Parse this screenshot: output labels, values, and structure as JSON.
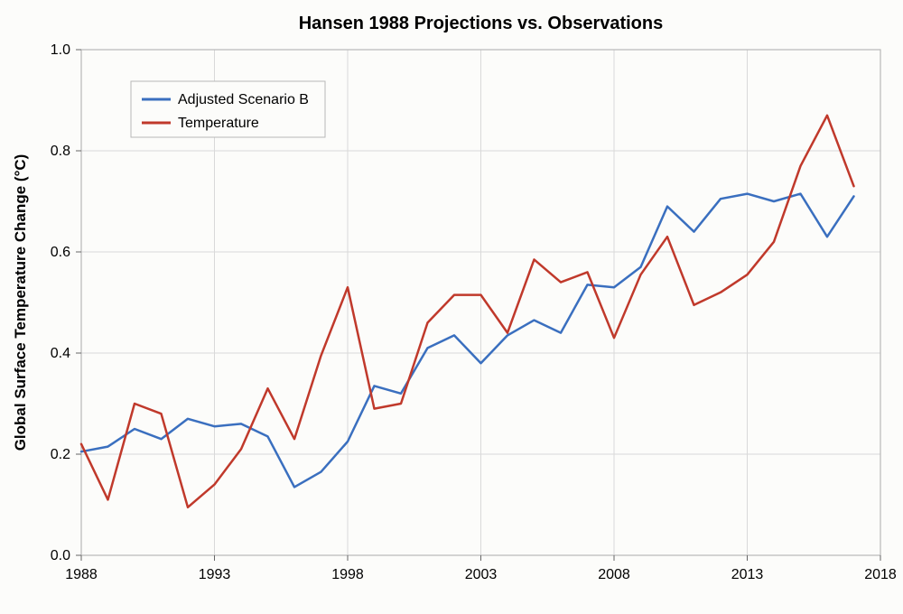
{
  "chart": {
    "type": "line",
    "title": "Hansen 1988 Projections vs. Observations",
    "title_fontsize": 20,
    "title_fontweight": "700",
    "background_color": "#fcfcfa",
    "plot_border_color": "#b8b8b8",
    "grid_color": "#d9d9d9",
    "grid_on": true,
    "x": {
      "label": "",
      "min": 1988,
      "max": 2018,
      "tick_step": 5,
      "ticks": [
        1988,
        1993,
        1998,
        2003,
        2008,
        2013,
        2018
      ],
      "tick_fontsize": 16
    },
    "y": {
      "label": "Global Surface Temperature Change (°C)",
      "label_fontsize": 17,
      "min": 0.0,
      "max": 1.0,
      "tick_step": 0.2,
      "ticks": [
        0.0,
        0.2,
        0.4,
        0.6,
        0.8,
        1.0
      ],
      "tick_fontsize": 16
    },
    "legend": {
      "position": "top-left",
      "border_color": "#b8b8b8",
      "fill": "#fcfcfa",
      "items": [
        {
          "label": "Adjusted Scenario B",
          "color": "#3a6fbf"
        },
        {
          "label": "Temperature",
          "color": "#c0392b"
        }
      ]
    },
    "line_width": 2.5,
    "series": [
      {
        "name": "Adjusted Scenario B",
        "color": "#3a6fbf",
        "x": [
          1988,
          1989,
          1990,
          1991,
          1992,
          1993,
          1994,
          1995,
          1996,
          1997,
          1998,
          1999,
          2000,
          2001,
          2002,
          2003,
          2004,
          2005,
          2006,
          2007,
          2008,
          2009,
          2010,
          2011,
          2012,
          2013,
          2014,
          2015,
          2016,
          2017
        ],
        "y": [
          0.205,
          0.215,
          0.25,
          0.23,
          0.27,
          0.255,
          0.26,
          0.235,
          0.135,
          0.165,
          0.225,
          0.335,
          0.32,
          0.41,
          0.435,
          0.38,
          0.435,
          0.465,
          0.44,
          0.535,
          0.53,
          0.57,
          0.69,
          0.64,
          0.705,
          0.715,
          0.7,
          0.715,
          0.63,
          0.71
        ]
      },
      {
        "name": "Temperature",
        "color": "#c0392b",
        "x": [
          1988,
          1989,
          1990,
          1991,
          1992,
          1993,
          1994,
          1995,
          1996,
          1997,
          1998,
          1999,
          2000,
          2001,
          2002,
          2003,
          2004,
          2005,
          2006,
          2007,
          2008,
          2009,
          2010,
          2011,
          2012,
          2013,
          2014,
          2015,
          2016,
          2017
        ],
        "y": [
          0.22,
          0.11,
          0.3,
          0.28,
          0.095,
          0.14,
          0.21,
          0.33,
          0.23,
          0.395,
          0.53,
          0.29,
          0.3,
          0.46,
          0.515,
          0.515,
          0.44,
          0.585,
          0.54,
          0.56,
          0.43,
          0.555,
          0.63,
          0.495,
          0.52,
          0.555,
          0.62,
          0.77,
          0.87,
          0.73
        ]
      }
    ]
  }
}
